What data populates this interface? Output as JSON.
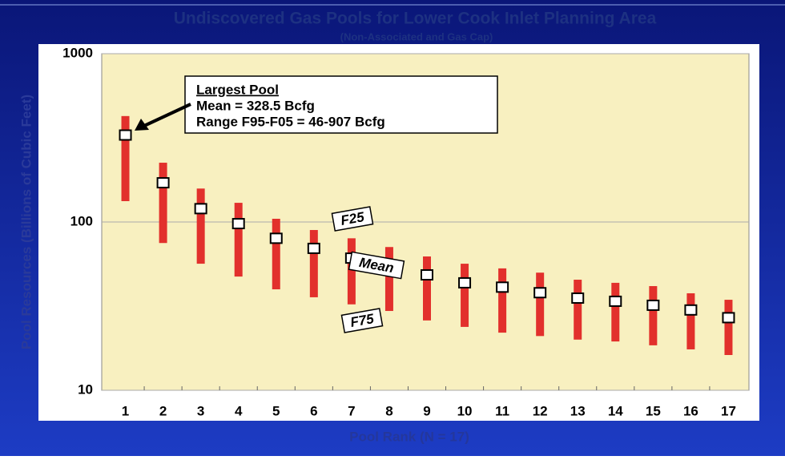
{
  "chart_data": {
    "type": "range",
    "title": "Undiscovered Gas Pools for Lower Cook Inlet Planning Area",
    "subtitle": "(Non-Associated and Gas Cap)",
    "x_label": "Pool Rank (N = 17)",
    "y_label": "Pool Resources (Billions of Cubic Feet)",
    "categories": [
      "1",
      "2",
      "3",
      "4",
      "5",
      "6",
      "7",
      "8",
      "9",
      "10",
      "11",
      "12",
      "13",
      "14",
      "15",
      "16",
      "17"
    ],
    "f25": [
      426,
      225,
      158,
      130,
      104.5,
      89.6,
      80,
      71,
      62.4,
      56.5,
      53,
      50,
      45.4,
      43.5,
      41.6,
      37.7,
      34.5
    ],
    "f75": [
      133,
      75,
      56.5,
      47.4,
      39.8,
      35.7,
      32.4,
      29.6,
      26,
      23.8,
      22,
      21,
      20,
      19.5,
      18.5,
      17.5,
      16.2
    ],
    "mean": [
      328.5,
      171,
      120,
      97.8,
      80,
      69.7,
      61,
      54,
      48.5,
      43.5,
      41,
      38,
      35.3,
      33.8,
      32,
      30,
      27
    ],
    "bar_color": "#e2302c",
    "marker_color": "#ffffff",
    "ylim": [
      10,
      1000
    ],
    "yticks": [
      10,
      100,
      1000
    ],
    "log_y": true,
    "grid": true,
    "series_labels": {
      "f25": "F25",
      "mean": "Mean",
      "f75": "F75"
    },
    "annotation": {
      "heading": "Largest Pool",
      "lines": [
        "Mean = 328.5 Bcfg",
        "Range F95-F05 = 46-907 Bcfg"
      ]
    }
  }
}
